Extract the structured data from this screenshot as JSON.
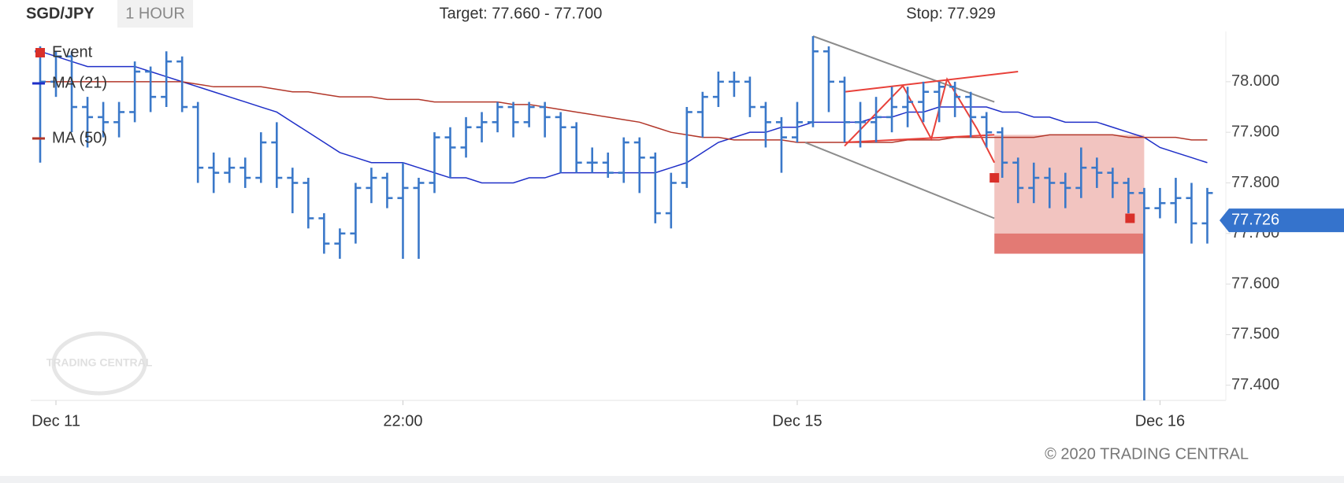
{
  "chart_data": {
    "type": "ohlc",
    "title": "SGD/JPY",
    "subtitle": "1 HOUR",
    "annotations": [
      "Target: 77.660 - 77.700",
      "Stop: 77.929"
    ],
    "copyright": "© 2020 TRADING CENTRAL",
    "watermark": "TRADING CENTRAL",
    "categories": [
      null,
      "Dec 11",
      null,
      null,
      null,
      null,
      null,
      null,
      null,
      null,
      null,
      null,
      null,
      null,
      null,
      null,
      null,
      null,
      null,
      null,
      null,
      null,
      null,
      "22:00",
      null,
      null,
      null,
      null,
      null,
      null,
      null,
      null,
      null,
      null,
      null,
      null,
      null,
      null,
      null,
      null,
      null,
      null,
      null,
      null,
      null,
      null,
      null,
      null,
      "Dec 15",
      null,
      null,
      null,
      null,
      null,
      null,
      null,
      null,
      null,
      null,
      null,
      null,
      null,
      null,
      null,
      null,
      null,
      null,
      null,
      null,
      null,
      null,
      "Dec 16",
      null,
      null,
      null
    ],
    "color": "#3a78c9",
    "open": [
      78.06,
      78.0,
      78.05,
      77.95,
      77.93,
      77.92,
      77.94,
      78.02,
      77.97,
      78.04,
      77.95,
      77.83,
      77.82,
      77.83,
      77.81,
      77.88,
      77.81,
      77.8,
      77.73,
      77.68,
      77.7,
      77.79,
      77.81,
      77.77,
      77.79,
      77.8,
      77.89,
      77.87,
      77.91,
      77.92,
      77.95,
      77.92,
      77.95,
      77.93,
      77.91,
      77.84,
      77.84,
      77.82,
      77.88,
      77.85,
      77.74,
      77.8,
      77.94,
      77.97,
      78.0,
      78.0,
      77.95,
      77.92,
      77.89,
      77.92,
      78.06,
      78.0,
      77.92,
      77.92,
      77.93,
      77.95,
      77.96,
      77.98,
      77.99,
      77.97,
      77.93,
      77.9,
      77.84,
      77.79,
      77.81,
      77.8,
      77.79,
      77.83,
      77.82,
      77.8,
      77.78,
      77.75,
      77.76,
      77.77,
      77.72
    ],
    "high": [
      78.07,
      78.06,
      78.06,
      77.97,
      77.96,
      77.96,
      78.04,
      78.03,
      78.06,
      78.05,
      77.96,
      77.86,
      77.85,
      77.85,
      77.9,
      77.92,
      77.83,
      77.81,
      77.74,
      77.71,
      77.8,
      77.83,
      77.82,
      77.84,
      77.81,
      77.9,
      77.91,
      77.93,
      77.94,
      77.96,
      77.96,
      77.96,
      77.96,
      77.94,
      77.92,
      77.87,
      77.86,
      77.89,
      77.89,
      77.86,
      77.82,
      77.95,
      77.98,
      78.02,
      78.02,
      78.01,
      77.96,
      77.93,
      77.96,
      78.09,
      78.07,
      78.01,
      77.96,
      77.97,
      77.99,
      77.99,
      78.0,
      78.0,
      78.0,
      77.98,
      77.94,
      77.91,
      77.85,
      77.84,
      77.83,
      77.82,
      77.87,
      77.85,
      77.83,
      77.81,
      77.79,
      77.79,
      77.81,
      77.8,
      77.79
    ],
    "low": [
      77.84,
      77.97,
      77.9,
      77.87,
      77.89,
      77.89,
      77.92,
      77.94,
      77.95,
      77.94,
      77.8,
      77.78,
      77.8,
      77.79,
      77.8,
      77.79,
      77.74,
      77.71,
      77.66,
      77.65,
      77.68,
      77.76,
      77.75,
      77.65,
      77.65,
      77.78,
      77.81,
      77.85,
      77.88,
      77.9,
      77.89,
      77.91,
      77.89,
      77.82,
      77.82,
      77.82,
      77.81,
      77.8,
      77.78,
      77.72,
      77.71,
      77.79,
      77.89,
      77.95,
      77.97,
      77.93,
      77.87,
      77.82,
      77.88,
      77.91,
      77.94,
      77.88,
      77.87,
      77.88,
      77.9,
      77.91,
      77.92,
      77.92,
      77.93,
      77.89,
      77.87,
      77.81,
      77.76,
      77.76,
      77.75,
      77.75,
      77.77,
      77.79,
      77.77,
      77.74,
      77.37,
      77.73,
      77.72,
      77.68,
      77.68
    ],
    "close": [
      78.0,
      78.05,
      77.95,
      77.93,
      77.92,
      77.94,
      78.02,
      77.97,
      78.04,
      77.95,
      77.83,
      77.82,
      77.83,
      77.81,
      77.88,
      77.81,
      77.8,
      77.73,
      77.68,
      77.7,
      77.79,
      77.81,
      77.77,
      77.79,
      77.8,
      77.89,
      77.87,
      77.91,
      77.92,
      77.95,
      77.92,
      77.95,
      77.93,
      77.91,
      77.84,
      77.84,
      77.82,
      77.88,
      77.85,
      77.74,
      77.8,
      77.94,
      77.97,
      78.0,
      78.0,
      77.95,
      77.92,
      77.89,
      77.92,
      78.06,
      78.0,
      77.92,
      77.92,
      77.93,
      77.95,
      77.96,
      77.98,
      77.99,
      77.97,
      77.93,
      77.9,
      77.84,
      77.79,
      77.81,
      77.8,
      77.79,
      77.83,
      77.82,
      77.8,
      77.78,
      77.75,
      77.76,
      77.77,
      77.72,
      77.78
    ],
    "series": [
      {
        "name": "MA (21)",
        "color": "#1f2fc8",
        "values": [
          78.06,
          78.05,
          78.04,
          78.03,
          78.03,
          78.03,
          78.03,
          78.02,
          78.01,
          78.0,
          77.99,
          77.98,
          77.97,
          77.96,
          77.95,
          77.94,
          77.92,
          77.9,
          77.88,
          77.86,
          77.85,
          77.84,
          77.84,
          77.84,
          77.83,
          77.82,
          77.81,
          77.81,
          77.8,
          77.8,
          77.8,
          77.81,
          77.81,
          77.82,
          77.82,
          77.82,
          77.82,
          77.82,
          77.82,
          77.82,
          77.83,
          77.84,
          77.86,
          77.88,
          77.89,
          77.9,
          77.9,
          77.91,
          77.91,
          77.92,
          77.92,
          77.92,
          77.92,
          77.93,
          77.93,
          77.94,
          77.94,
          77.95,
          77.95,
          77.95,
          77.95,
          77.94,
          77.94,
          77.93,
          77.93,
          77.92,
          77.92,
          77.92,
          77.91,
          77.9,
          77.89,
          77.87,
          77.86,
          77.85,
          77.84
        ]
      },
      {
        "name": "MA (50)",
        "color": "#b2372a",
        "values": [
          78.0,
          78.0,
          78.0,
          78.0,
          78.0,
          78.0,
          78.0,
          78.0,
          78.0,
          78.0,
          77.995,
          77.99,
          77.99,
          77.99,
          77.99,
          77.985,
          77.98,
          77.98,
          77.975,
          77.97,
          77.97,
          77.97,
          77.965,
          77.965,
          77.965,
          77.96,
          77.96,
          77.96,
          77.96,
          77.96,
          77.955,
          77.955,
          77.95,
          77.945,
          77.94,
          77.935,
          77.93,
          77.925,
          77.92,
          77.91,
          77.9,
          77.895,
          77.89,
          77.89,
          77.885,
          77.885,
          77.885,
          77.885,
          77.88,
          77.88,
          77.88,
          77.88,
          77.88,
          77.88,
          77.88,
          77.885,
          77.885,
          77.885,
          77.89,
          77.89,
          77.89,
          77.89,
          77.89,
          77.89,
          77.895,
          77.895,
          77.895,
          77.895,
          77.895,
          77.89,
          77.89,
          77.89,
          77.89,
          77.885,
          77.885
        ]
      }
    ],
    "events": {
      "name": "Event",
      "color": "#d9302a",
      "x": [
        60.5,
        69.1
      ],
      "values": [
        77.81,
        77.73
      ]
    },
    "target_zone": {
      "x": [
        60.5,
        70
      ],
      "top": 77.895,
      "bottom": 77.7,
      "target": [
        77.66,
        77.7
      ]
    },
    "drawings": [
      {
        "color": "#8c8c8c",
        "x": [
          49,
          60.5
        ],
        "values": [
          78.09,
          77.96
        ]
      },
      {
        "color": "#8c8c8c",
        "x": [
          48.5,
          60.5
        ],
        "values": [
          77.88,
          77.73
        ]
      },
      {
        "color": "#e8413a",
        "x": [
          51,
          62
        ],
        "values": [
          77.98,
          78.02
        ]
      },
      {
        "color": "#e8413a",
        "x": [
          51,
          60.5
        ],
        "values": [
          77.88,
          77.895
        ]
      },
      {
        "color": "#e8413a",
        "x": [
          51,
          54.7,
          56.5,
          57.5,
          59.4,
          60.5
        ],
        "values": [
          77.873,
          77.992,
          77.887,
          78.005,
          77.907,
          77.84
        ]
      }
    ],
    "last_price": 77.726,
    "ylim": [
      77.37,
      78.09
    ],
    "yticks": [
      {
        "value": 77.4,
        "label": "77.400"
      },
      {
        "value": 77.5,
        "label": "77.500"
      },
      {
        "value": 77.6,
        "label": "77.600"
      },
      {
        "value": 77.7,
        "label": "77.700"
      },
      {
        "value": 77.8,
        "label": "77.800"
      },
      {
        "value": 77.9,
        "label": "77.900"
      },
      {
        "value": 78.0,
        "label": "78.000"
      }
    ]
  }
}
